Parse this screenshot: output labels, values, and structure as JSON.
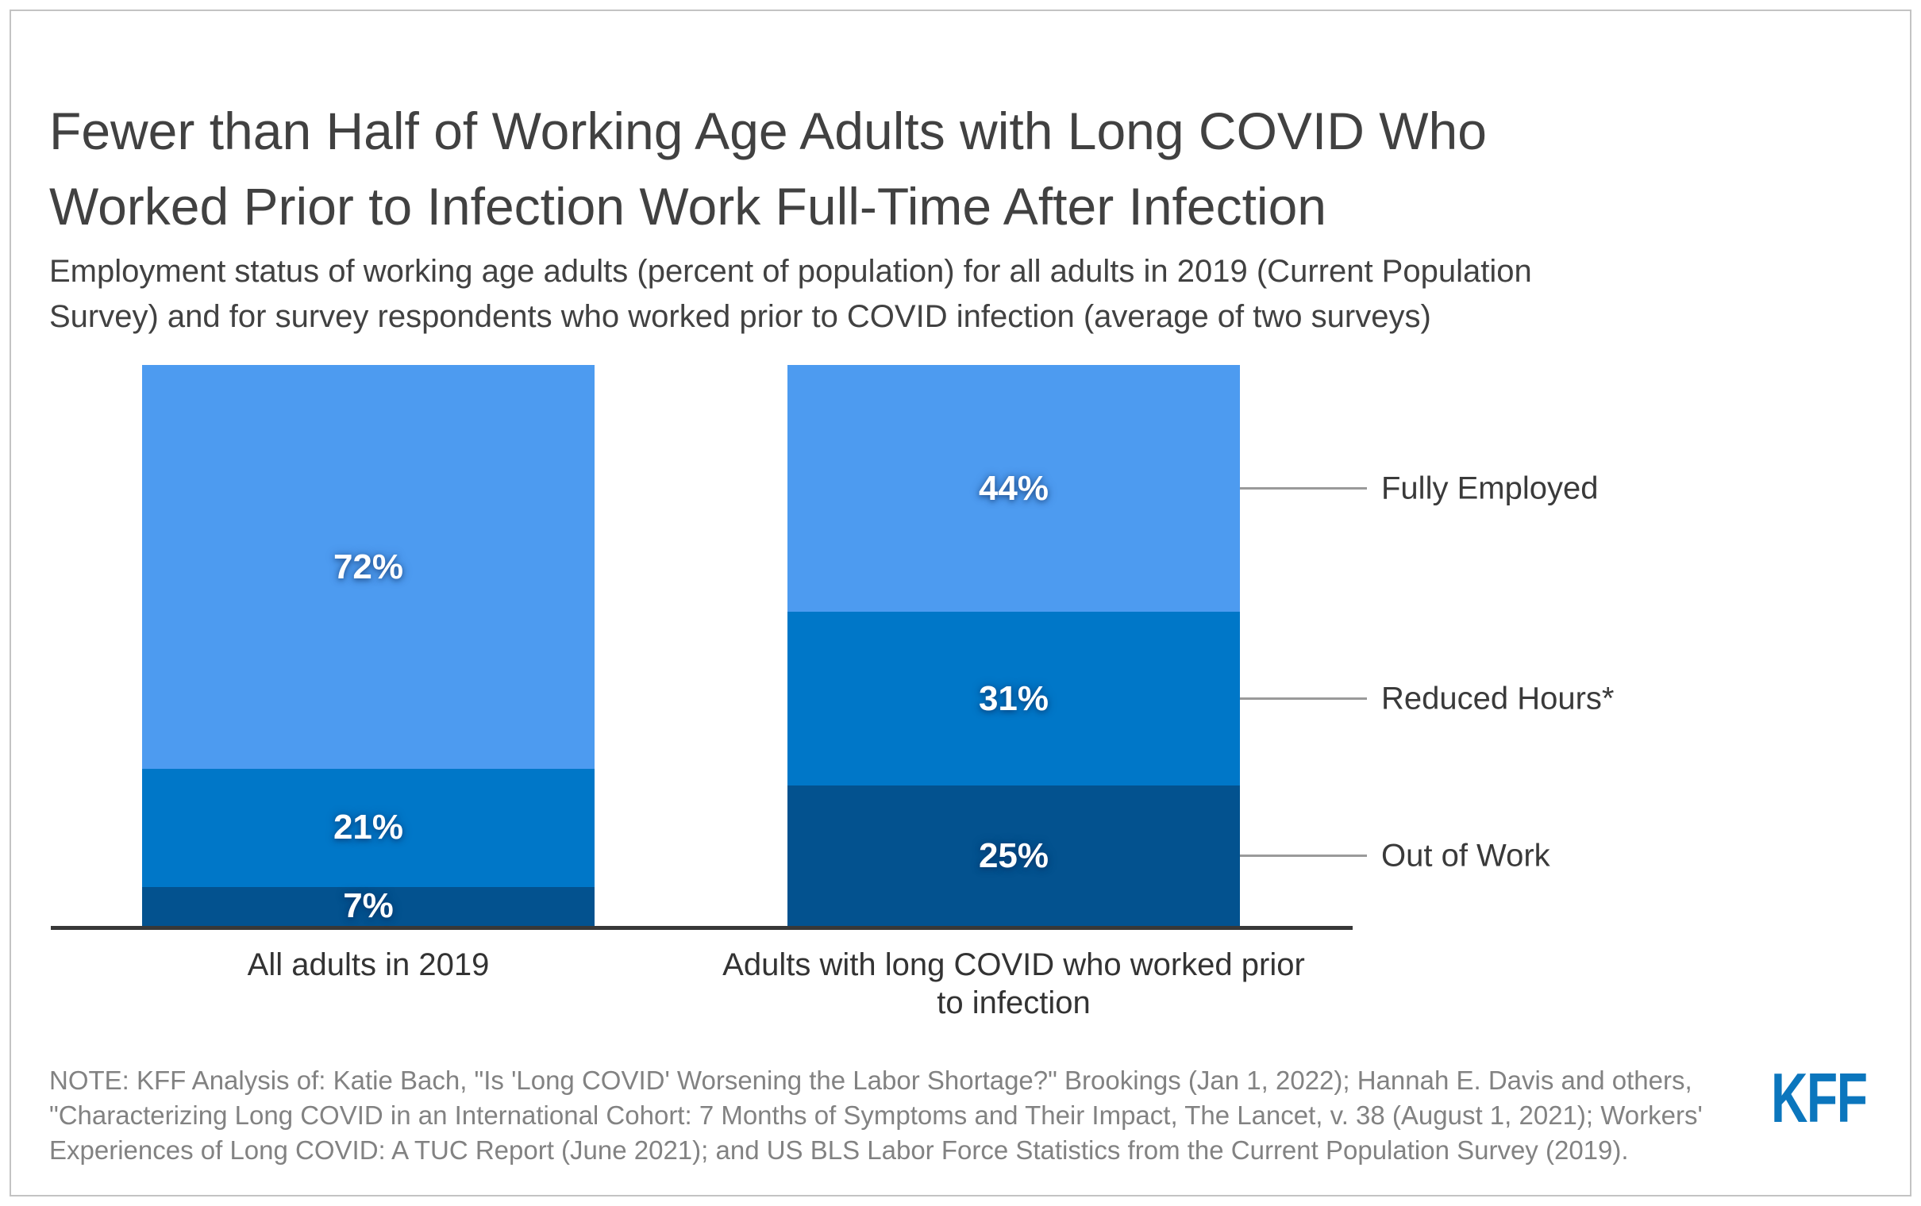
{
  "header": {
    "title": "Fewer than Half of Working Age Adults with Long COVID Who Worked Prior to Infection Work Full-Time After Infection",
    "subtitle": "Employment status of working age adults (percent of population) for all adults in 2019 (Current Population Survey) and for survey respondents who worked prior to COVID infection (average of two surveys)"
  },
  "chart_data": {
    "type": "bar",
    "stacked": true,
    "orientation": "vertical",
    "categories": [
      "All adults in 2019",
      "Adults with long COVID who worked prior to infection"
    ],
    "category_label_lines": [
      [
        "All adults in 2019"
      ],
      [
        "Adults with long COVID who worked prior",
        "to infection"
      ]
    ],
    "series": [
      {
        "name": "Fully Employed",
        "values": [
          72,
          44
        ],
        "color": "#4d9bf0"
      },
      {
        "name": "Reduced Hours*",
        "values": [
          21,
          31
        ],
        "color": "#0077c8"
      },
      {
        "name": "Out of Work",
        "values": [
          7,
          25
        ],
        "color": "#03528f"
      }
    ],
    "value_suffix": "%",
    "ylim": [
      0,
      100
    ],
    "grid": false,
    "legend_position": "right with leader lines from second bar",
    "axis_line_color": "#383838",
    "leader_line_color": "#9a9a9a"
  },
  "note": {
    "text": "NOTE: KFF Analysis of: Katie Bach, \"Is 'Long COVID' Worsening the Labor Shortage?\" Brookings (Jan 1, 2022); Hannah E. Davis and others, \"Characterizing Long COVID in an International Cohort: 7 Months of Symptoms and Their Impact, The Lancet, v. 38 (August 1, 2021); Workers' Experiences of Long COVID: A TUC Report (June 2021); and US BLS Labor Force Statistics from the Current Population Survey (2019)."
  },
  "logo": {
    "text": "KFF",
    "color": "#0b76bd"
  }
}
